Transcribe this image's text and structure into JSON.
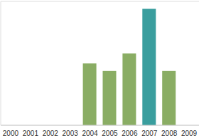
{
  "chart_data": {
    "type": "bar",
    "categories": [
      "2000",
      "2001",
      "2002",
      "2003",
      "2004",
      "2005",
      "2006",
      "2007",
      "2008",
      "2009"
    ],
    "values": [
      null,
      null,
      null,
      null,
      2.5,
      2.2,
      2.9,
      4.7,
      2.2,
      null
    ],
    "colors": [
      "#8aad64",
      "#8aad64",
      "#8aad64",
      "#8aad64",
      "#8aad64",
      "#8aad64",
      "#8aad64",
      "#3a9e9e",
      "#8aad64",
      "#8aad64"
    ],
    "ylim": [
      0,
      5
    ],
    "yticks": [
      0,
      1,
      2,
      3,
      4,
      5
    ],
    "grid": true,
    "tick_labels": "x"
  }
}
